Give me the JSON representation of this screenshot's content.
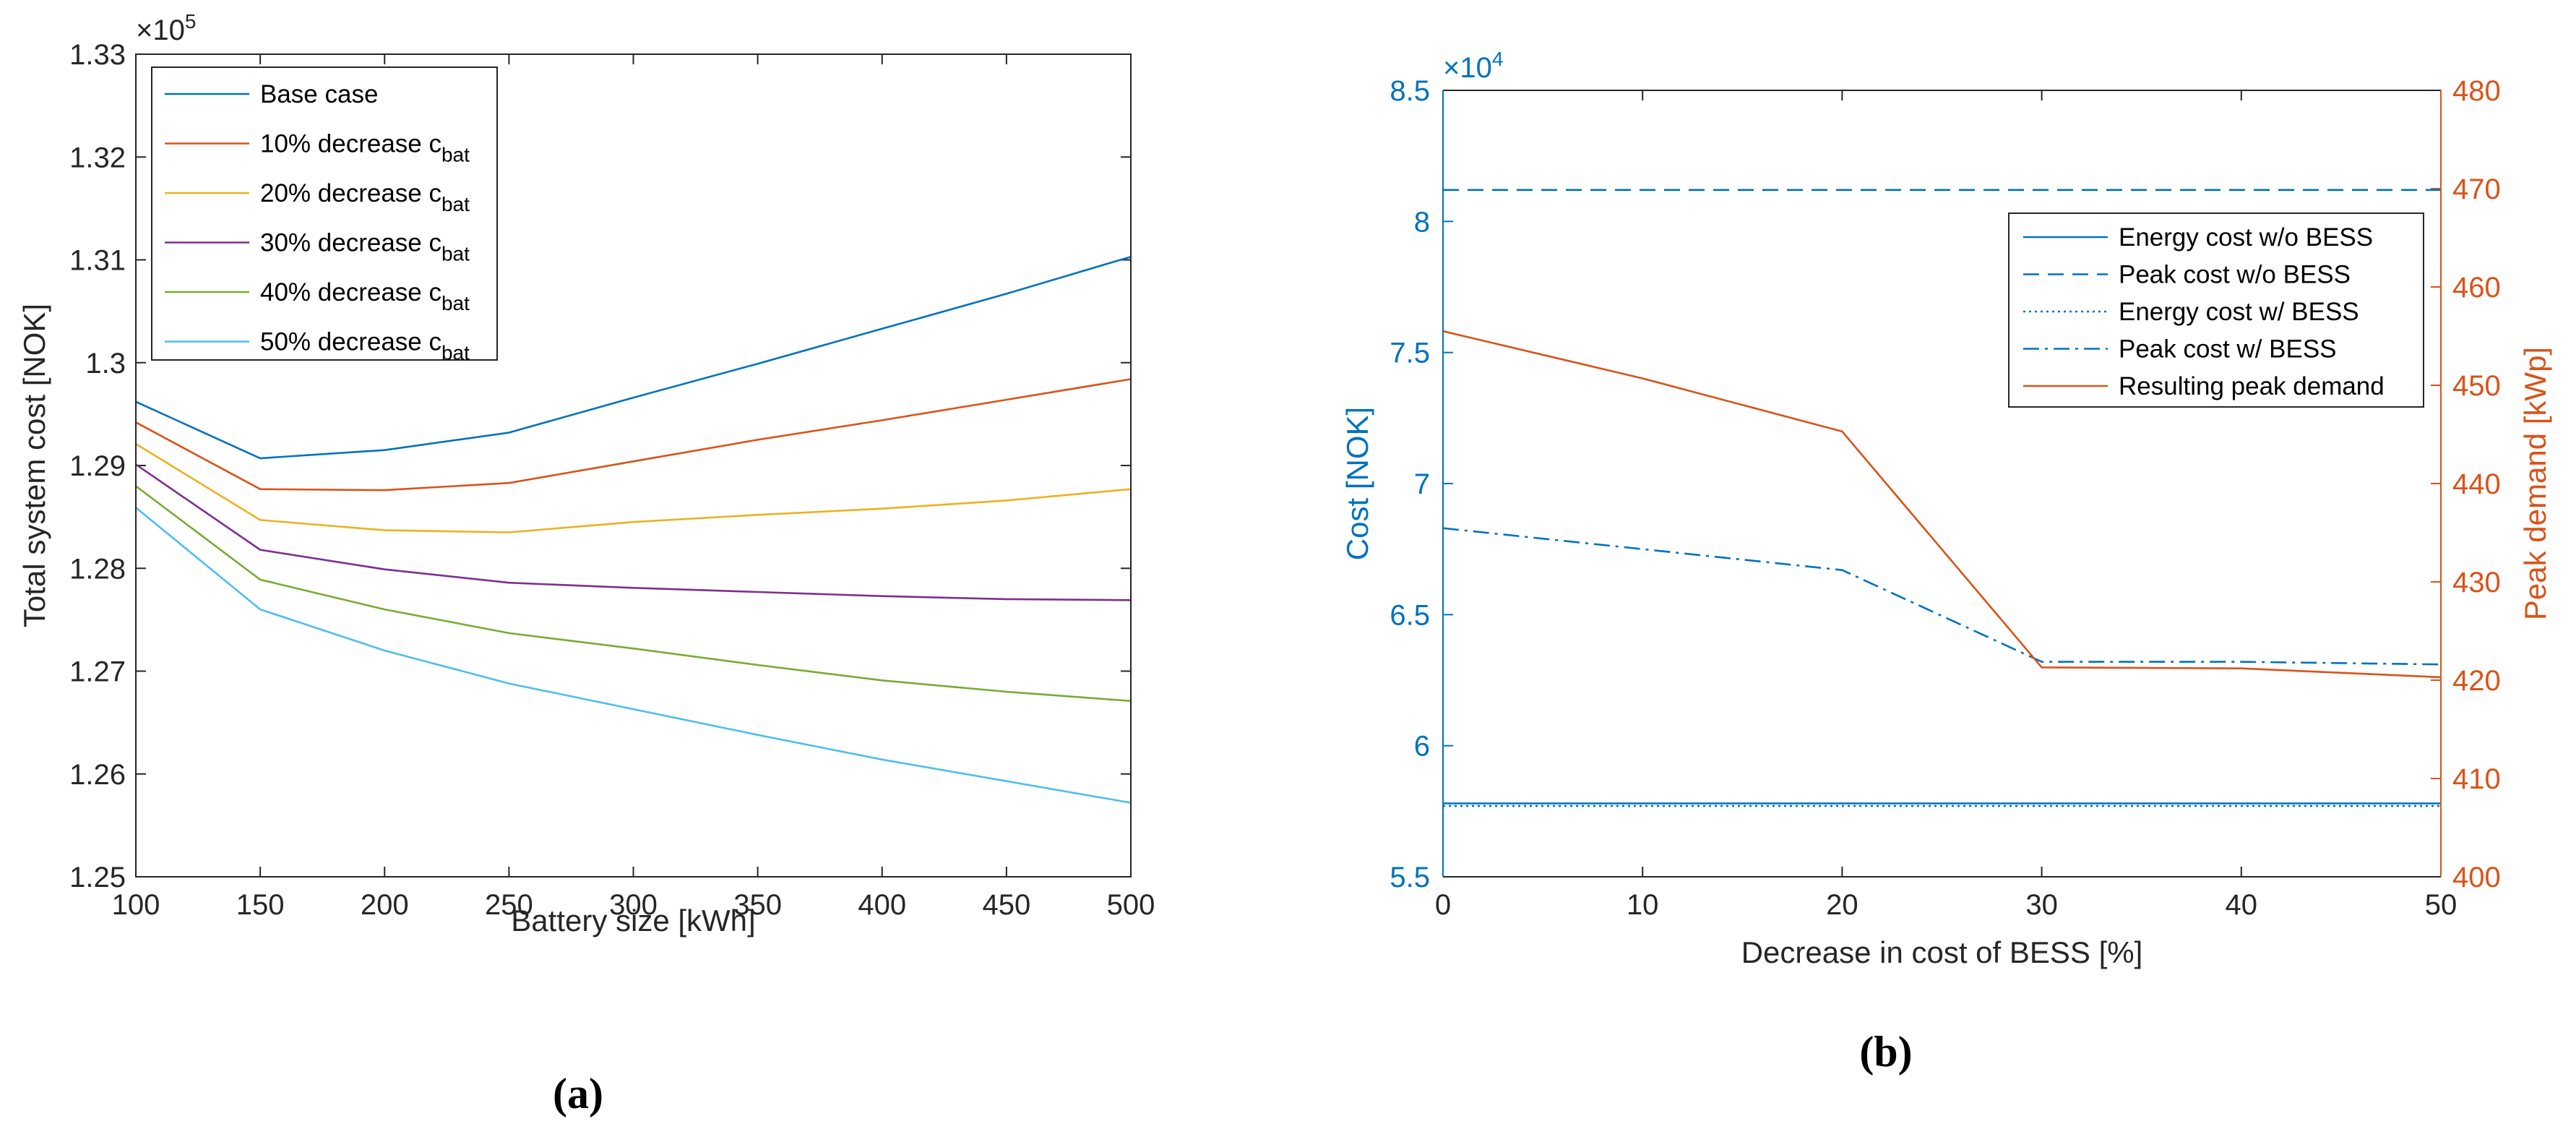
{
  "captions": {
    "a": "(a)",
    "b": "(b)"
  },
  "chart_data": [
    {
      "type": "line",
      "xlabel": "Battery size [kWh]",
      "ylabel": "Total system cost [NOK]",
      "y_multiplier": "×10",
      "y_exponent": "5",
      "xlim": [
        100,
        500
      ],
      "ylim": [
        1.25,
        1.33
      ],
      "xticks": [
        100,
        150,
        200,
        250,
        300,
        350,
        400,
        450,
        500
      ],
      "yticks": [
        1.25,
        1.26,
        1.27,
        1.28,
        1.29,
        1.3,
        1.31,
        1.32,
        1.33
      ],
      "ytick_labels": [
        "1.25",
        "1.26",
        "1.27",
        "1.28",
        "1.29",
        "1.3",
        "1.31",
        "1.32",
        "1.33"
      ],
      "x": [
        100,
        150,
        200,
        250,
        300,
        350,
        400,
        450,
        500
      ],
      "series": [
        {
          "name": "Base case",
          "legend_main": "Base case",
          "legend_sub": "",
          "color": "#0072BD",
          "values": [
            1.2962,
            1.2907,
            1.2915,
            1.2932,
            1.2966,
            1.2999,
            1.3033,
            1.3067,
            1.3103
          ]
        },
        {
          "name": "10% decrease c_bat",
          "legend_main": "10% decrease c",
          "legend_sub": "bat",
          "color": "#D95319",
          "values": [
            1.2942,
            1.2877,
            1.2876,
            1.2883,
            1.2904,
            1.2925,
            1.2944,
            1.2964,
            1.2984
          ]
        },
        {
          "name": "20% decrease c_bat",
          "legend_main": "20% decrease c",
          "legend_sub": "bat",
          "color": "#EDB120",
          "values": [
            1.2921,
            1.2847,
            1.2837,
            1.2835,
            1.2845,
            1.2852,
            1.2858,
            1.2866,
            1.2877
          ]
        },
        {
          "name": "30% decrease c_bat",
          "legend_main": "30% decrease c",
          "legend_sub": "bat",
          "color": "#7E2F8E",
          "values": [
            1.2901,
            1.2818,
            1.2799,
            1.2786,
            1.2781,
            1.2777,
            1.2773,
            1.277,
            1.2769
          ]
        },
        {
          "name": "40% decrease c_bat",
          "legend_main": "40% decrease c",
          "legend_sub": "bat",
          "color": "#77AC30",
          "values": [
            1.288,
            1.2789,
            1.276,
            1.2737,
            1.2722,
            1.2706,
            1.2691,
            1.268,
            1.2671
          ]
        },
        {
          "name": "50% decrease c_bat",
          "legend_main": "50% decrease c",
          "legend_sub": "bat",
          "color": "#4DBEEE",
          "values": [
            1.2859,
            1.276,
            1.272,
            1.2688,
            1.2663,
            1.2638,
            1.2614,
            1.2593,
            1.2572
          ]
        }
      ]
    },
    {
      "type": "line",
      "xlabel": "Decrease in cost of BESS [%]",
      "ylabel_left": "Cost [NOK]",
      "ylabel_right": "Peak demand [kWp]",
      "y_multiplier": "×10",
      "y_exponent": "4",
      "xlim": [
        0,
        50
      ],
      "ylim_left": [
        5.5,
        8.5
      ],
      "ylim_right": [
        400,
        480
      ],
      "xticks": [
        0,
        10,
        20,
        30,
        40,
        50
      ],
      "yticks_left": [
        5.5,
        6,
        6.5,
        7,
        7.5,
        8,
        8.5
      ],
      "ytick_labels_left": [
        "5.5",
        "6",
        "6.5",
        "7",
        "7.5",
        "8",
        "8.5"
      ],
      "yticks_right": [
        400,
        410,
        420,
        430,
        440,
        450,
        460,
        470,
        480
      ],
      "left_color": "#0072BD",
      "right_color": "#D95319",
      "x": [
        0,
        10,
        20,
        30,
        40,
        50
      ],
      "series": [
        {
          "name": "Energy cost w/o BESS",
          "axis": "left",
          "dash": "",
          "color": "#0072BD",
          "values": [
            5.78,
            5.78,
            5.78,
            5.78,
            5.78,
            5.78
          ]
        },
        {
          "name": "Peak cost w/o BESS",
          "axis": "left",
          "dash": "22 12",
          "color": "#0072BD",
          "values": [
            8.12,
            8.12,
            8.12,
            8.12,
            8.12,
            8.12
          ]
        },
        {
          "name": "Energy cost w/ BESS",
          "axis": "left",
          "dash": "3 5",
          "color": "#0072BD",
          "values": [
            5.77,
            5.77,
            5.77,
            5.77,
            5.77,
            5.77
          ]
        },
        {
          "name": "Peak cost w/ BESS",
          "axis": "left",
          "dash": "22 8 4 8",
          "color": "#0072BD",
          "values": [
            6.83,
            6.75,
            6.67,
            6.32,
            6.32,
            6.31
          ]
        },
        {
          "name": "Resulting peak demand",
          "axis": "right",
          "dash": "",
          "color": "#D95319",
          "values": [
            455.5,
            450.7,
            445.3,
            421.3,
            421.2,
            420.3
          ]
        }
      ]
    }
  ]
}
